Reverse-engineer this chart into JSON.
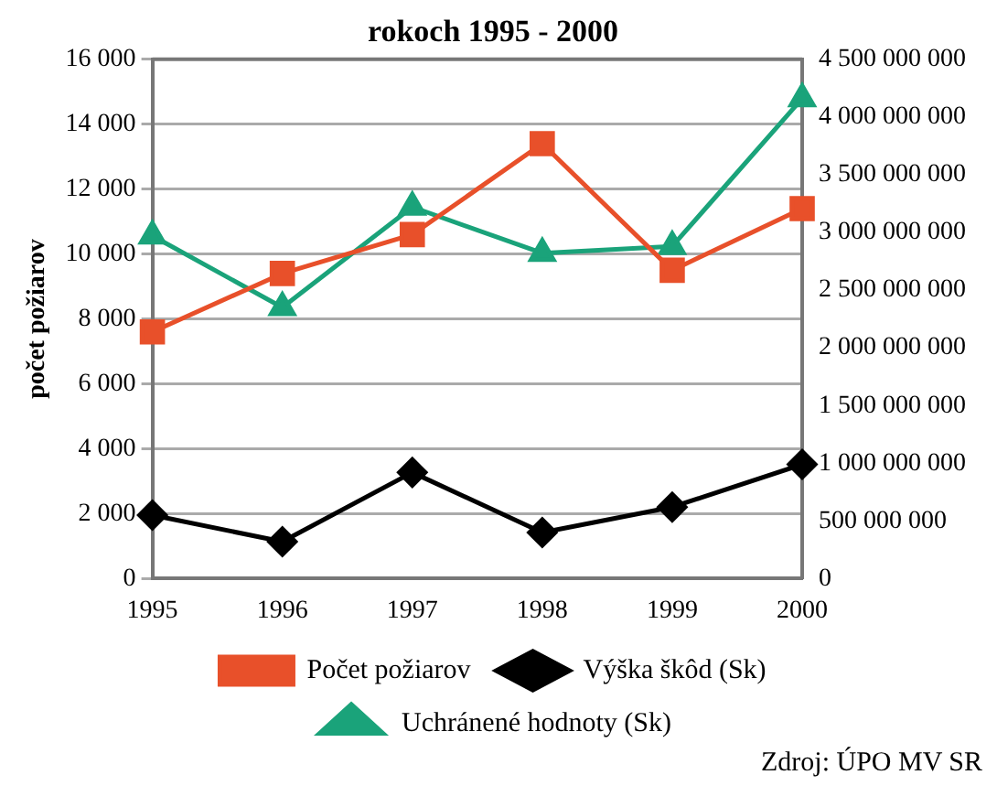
{
  "chart_data": {
    "type": "line",
    "title": "rokoch 1995 - 2000",
    "ylabel": "počet požiarov",
    "categories": [
      "1995",
      "1996",
      "1997",
      "1998",
      "1999",
      "2000"
    ],
    "series": [
      {
        "name": "Počet požiarov",
        "color": "#e8502a",
        "marker": "square",
        "values": [
          7600,
          9400,
          10600,
          13400,
          9500,
          11400
        ]
      },
      {
        "name": "Výška škôd (Sk)",
        "color": "#000000",
        "marker": "diamond",
        "axis": "y2",
        "values": [
          550000000,
          320000000,
          920000000,
          400000000,
          620000000,
          990000000
        ]
      },
      {
        "name": "Uchránené hodnoty (Sk)",
        "color": "#1aa37a",
        "marker": "triangle",
        "axis": "y2",
        "values": [
          2970000000,
          2350000000,
          3220000000,
          2820000000,
          2880000000,
          4160000000
        ]
      }
    ],
    "ylim": [
      0,
      16000
    ],
    "yticks": [
      0,
      {
        "value": 2000,
        "label": "2 000"
      },
      {
        "value": 4000,
        "label": "4 000"
      },
      {
        "value": 6000,
        "label": "6 000"
      },
      {
        "value": 8000,
        "label": "8 000"
      },
      {
        "value": 10000,
        "label": "10 000"
      },
      {
        "value": 12000,
        "label": "12 000"
      },
      {
        "value": 14000,
        "label": "14 000"
      },
      {
        "value": 16000,
        "label": "16 000"
      }
    ],
    "y2lim": [
      0,
      4500000000
    ],
    "y2ticks": [
      0,
      {
        "value": 500000000,
        "label": "500 000 000"
      },
      {
        "value": 1000000000,
        "label": "1 000 000 000"
      },
      {
        "value": 1500000000,
        "label": "1 500 000 000"
      },
      {
        "value": 2000000000,
        "label": "2 000 000 000"
      },
      {
        "value": 2500000000,
        "label": "2 500 000 000"
      },
      {
        "value": 3000000000,
        "label": "3 000 000 000"
      },
      {
        "value": 3500000000,
        "label": "3 500 000 000"
      },
      {
        "value": 4000000000,
        "label": "4 000 000 000"
      },
      {
        "value": 4500000000,
        "label": "4 500 000 000"
      }
    ],
    "grid": "y",
    "legend": "bottom",
    "line_style": "solid",
    "annotations": [
      "Zdroj: ÚPO MV SR"
    ]
  }
}
